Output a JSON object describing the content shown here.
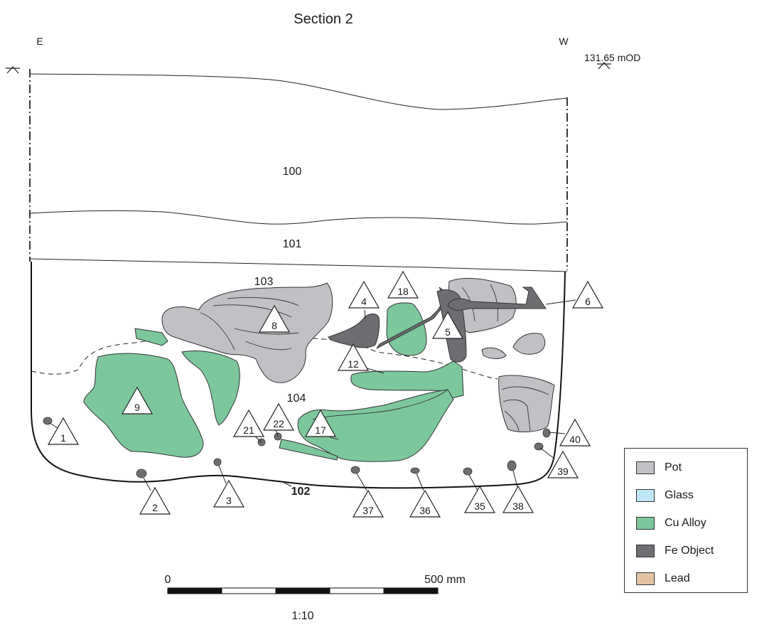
{
  "title": "Section 2",
  "orientation": {
    "left": "E",
    "right": "W"
  },
  "datum_label": "131.65 mOD",
  "contexts": {
    "c100": "100",
    "c101": "101",
    "c103": "103",
    "c104": "104",
    "c102": "102"
  },
  "finds": {
    "f1": "1",
    "f2": "2",
    "f3": "3",
    "f4": "4",
    "f5": "5",
    "f6": "6",
    "f8": "8",
    "f9": "9",
    "f12": "12",
    "f17": "17",
    "f18": "18",
    "f21": "21",
    "f22": "22",
    "f35": "35",
    "f36": "36",
    "f37": "37",
    "f38": "38",
    "f39": "39",
    "f40": "40"
  },
  "legend": [
    {
      "label": "Pot",
      "color": "#c0c1c4"
    },
    {
      "label": "Glass",
      "color": "#bfe6f7"
    },
    {
      "label": "Cu Alloy",
      "color": "#7dc79c"
    },
    {
      "label": "Fe Object",
      "color": "#6d6e71"
    },
    {
      "label": "Lead",
      "color": "#e3c3a4"
    }
  ],
  "scale": {
    "start": "0",
    "end": "500 mm",
    "ratio": "1:10"
  }
}
